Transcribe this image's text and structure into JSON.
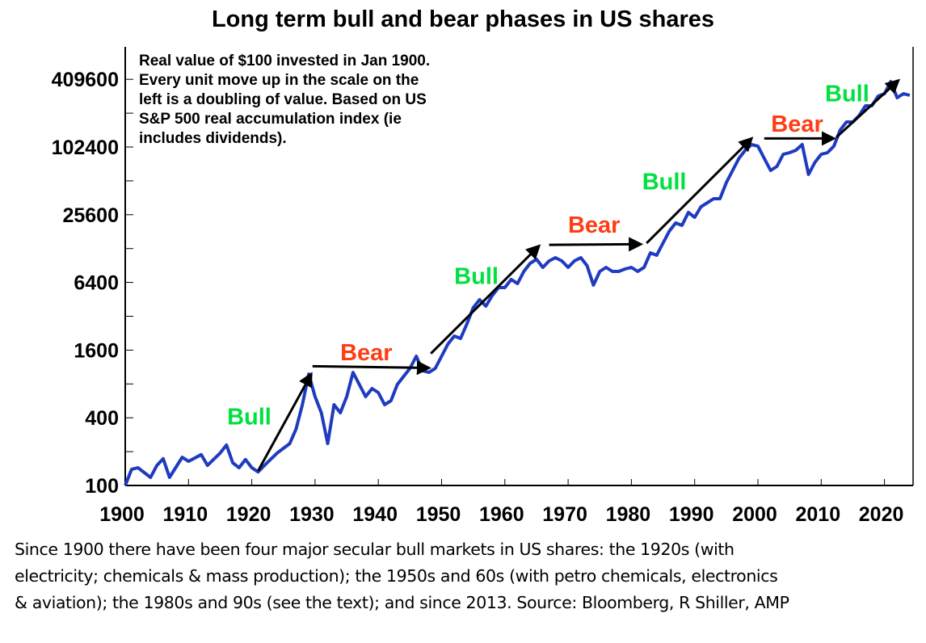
{
  "chart_data": {
    "type": "line",
    "title": "Long term bull and bear phases in US shares",
    "note": "Real value of $100 invested in Jan 1900.\nEvery unit move up in the scale on the\nleft is a doubling of value. Based on US\nS&P 500 real accumulation index (ie\nincludes dividends).",
    "footer": "Since 1900 there have been four major secular bull markets in US shares: the 1920s (with\nelectricity; chemicals & mass production); the 1950s and 60s (with petro chemicals, electronics\n& aviation); the 1980s and 90s (see the text); and since 2013. Source: Bloomberg, R Shiller, AMP",
    "y_scale": "log2",
    "ylim": [
      100,
      700000
    ],
    "xlim": [
      1900,
      2024.5
    ],
    "y_ticks": [
      "100",
      "400",
      "1600",
      "6400",
      "25600",
      "102400",
      "409600"
    ],
    "x_ticks": [
      "1900",
      "1910",
      "1920",
      "1930",
      "1940",
      "1950",
      "1960",
      "1970",
      "1980",
      "1990",
      "2000",
      "2010",
      "2020"
    ],
    "grid": false,
    "line_color": "#1f3bbf",
    "series": [
      {
        "x": [
          1900,
          1901,
          1902,
          1904,
          1905,
          1906,
          1907,
          1909,
          1910,
          1912,
          1913,
          1915,
          1916,
          1917,
          1918,
          1919,
          1920,
          1921,
          1922,
          1924,
          1926,
          1927,
          1928,
          1929,
          1930,
          1931,
          1932,
          1933,
          1934,
          1935,
          1936,
          1937,
          1938,
          1939,
          1940,
          1941,
          1942,
          1943,
          1944,
          1945,
          1946,
          1947,
          1948,
          1949,
          1950,
          1951,
          1952,
          1953,
          1954,
          1955,
          1956,
          1957,
          1958,
          1959,
          1960,
          1961,
          1962,
          1963,
          1964,
          1965,
          1966,
          1967,
          1968,
          1969,
          1970,
          1971,
          1972,
          1973,
          1974,
          1975,
          1976,
          1977,
          1978,
          1979,
          1980,
          1981,
          1982,
          1983,
          1984,
          1985,
          1986,
          1987,
          1988,
          1989,
          1990,
          1991,
          1992,
          1993,
          1994,
          1995,
          1996,
          1997,
          1998,
          1999,
          2000,
          2001,
          2002,
          2003,
          2004,
          2005,
          2006,
          2007,
          2008,
          2009,
          2010,
          2011,
          2012,
          2013,
          2014,
          2015,
          2016,
          2017,
          2018,
          2019,
          2020,
          2021,
          2022,
          2023,
          2024
        ],
        "values": [
          100,
          139,
          144,
          118,
          151,
          173,
          118,
          178,
          164,
          188,
          151,
          194,
          229,
          159,
          144,
          170,
          144,
          132,
          151,
          194,
          236,
          318,
          523,
          981,
          617,
          443,
          236,
          523,
          443,
          617,
          1014,
          791,
          617,
          728,
          670,
          523,
          568,
          791,
          933,
          1101,
          1411,
          1048,
          1014,
          1101,
          1411,
          1809,
          2133,
          2030,
          2734,
          3808,
          4491,
          3935,
          4880,
          5757,
          5757,
          6794,
          6254,
          8017,
          9457,
          10277,
          8710,
          9942,
          10620,
          9942,
          8710,
          9942,
          10620,
          9003,
          6050,
          8017,
          8710,
          8017,
          8017,
          8422,
          8710,
          8017,
          8710,
          11731,
          11161,
          14306,
          18327,
          21630,
          20580,
          26820,
          24290,
          30110,
          32700,
          35530,
          35530,
          49470,
          63400,
          81200,
          95900,
          107700,
          104200,
          81200,
          63400,
          68800,
          88200,
          91200,
          95900,
          107700,
          58400,
          74800,
          88200,
          91200,
          104200,
          144900,
          171000,
          171000,
          195300,
          238000,
          238000,
          290400,
          305000,
          391000,
          281000,
          305000,
          295000
        ]
      }
    ],
    "annotations": [
      {
        "label": "Bull",
        "color": "#00e040",
        "from": [
          1921,
          135
        ],
        "to": [
          1929.4,
          980
        ],
        "text_at": [
          1919.6,
          350
        ]
      },
      {
        "label": "Bear",
        "color": "#ff3c14",
        "from": [
          1929.6,
          1150
        ],
        "to": [
          1948,
          1110
        ],
        "text_at": [
          1938.1,
          1300
        ]
      },
      {
        "label": "Bull",
        "color": "#00e040",
        "from": [
          1948.3,
          1490
        ],
        "to": [
          1965.4,
          13500
        ],
        "text_at": [
          1955.5,
          6200
        ]
      },
      {
        "label": "Bear",
        "color": "#ff3c14",
        "from": [
          1967,
          13800
        ],
        "to": [
          1981.5,
          14000
        ],
        "text_at": [
          1974.1,
          17800
        ]
      },
      {
        "label": "Bull",
        "color": "#00e040",
        "from": [
          1982.4,
          14300
        ],
        "to": [
          1999,
          122000
        ],
        "text_at": [
          1985.2,
          43000
        ]
      },
      {
        "label": "Bear",
        "color": "#ff3c14",
        "from": [
          2001,
          122000
        ],
        "to": [
          2012,
          122000
        ],
        "text_at": [
          2006.2,
          140000
        ]
      },
      {
        "label": "Bull",
        "color": "#00e040",
        "from": [
          2012.4,
          125000
        ],
        "to": [
          2022.2,
          400000
        ],
        "text_at": [
          2014.1,
          260000
        ]
      }
    ]
  }
}
